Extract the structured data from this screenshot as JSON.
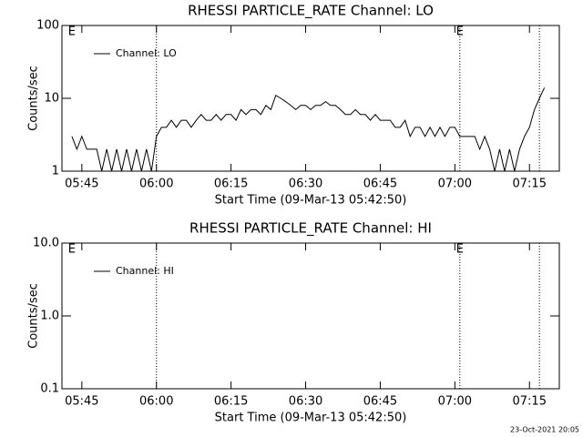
{
  "chart_data": [
    {
      "type": "line",
      "title": "RHESSI PARTICLE_RATE Channel: LO",
      "xlabel": "Start Time (09-Mar-13 05:42:50)",
      "ylabel": "Counts/sec",
      "log_y": true,
      "ylim": [
        1,
        100
      ],
      "yticks": [
        1,
        10,
        100
      ],
      "xlim": [
        "05:41",
        "07:21"
      ],
      "xticks": [
        "05:45",
        "06:00",
        "06:15",
        "06:30",
        "06:45",
        "07:00",
        "07:15"
      ],
      "vlines": [
        "06:00",
        "07:01",
        "07:17"
      ],
      "annotations": [
        {
          "x": "05:43",
          "label": "E"
        },
        {
          "x": "07:01",
          "label": "E"
        }
      ],
      "legend": "upper left",
      "x": [
        "05:43",
        "05:44",
        "05:45",
        "05:46",
        "05:47",
        "05:48",
        "05:49",
        "05:50",
        "05:51",
        "05:52",
        "05:53",
        "05:54",
        "05:55",
        "05:56",
        "05:57",
        "05:58",
        "05:59",
        "06:00",
        "06:01",
        "06:02",
        "06:03",
        "06:04",
        "06:05",
        "06:06",
        "06:07",
        "06:08",
        "06:09",
        "06:10",
        "06:11",
        "06:12",
        "06:13",
        "06:14",
        "06:15",
        "06:16",
        "06:17",
        "06:18",
        "06:19",
        "06:20",
        "06:21",
        "06:22",
        "06:23",
        "06:24",
        "06:25",
        "06:26",
        "06:27",
        "06:28",
        "06:29",
        "06:30",
        "06:31",
        "06:32",
        "06:33",
        "06:34",
        "06:35",
        "06:36",
        "06:37",
        "06:38",
        "06:39",
        "06:40",
        "06:41",
        "06:42",
        "06:43",
        "06:44",
        "06:45",
        "06:46",
        "06:47",
        "06:48",
        "06:49",
        "06:50",
        "06:51",
        "06:52",
        "06:53",
        "06:54",
        "06:55",
        "06:56",
        "06:57",
        "06:58",
        "06:59",
        "07:00",
        "07:01",
        "07:02",
        "07:03",
        "07:04",
        "07:05",
        "07:06",
        "07:07",
        "07:08",
        "07:09",
        "07:10",
        "07:11",
        "07:12",
        "07:13",
        "07:14",
        "07:15",
        "07:16",
        "07:17",
        "07:18"
      ],
      "series": [
        {
          "name": "Channel: LO",
          "color": "#000000",
          "values": [
            3,
            2,
            3,
            2,
            2,
            2,
            1,
            2,
            1,
            2,
            1,
            2,
            1,
            2,
            1,
            2,
            1,
            3,
            4,
            4,
            5,
            4,
            5,
            5,
            4,
            5,
            6,
            5,
            5,
            6,
            5,
            6,
            6,
            5,
            7,
            6,
            7,
            7,
            6,
            8,
            7,
            11,
            10,
            9,
            8,
            7,
            8,
            8,
            7,
            8,
            8,
            9,
            8,
            8,
            7,
            6,
            6,
            7,
            6,
            6,
            5,
            6,
            5,
            5,
            5,
            4,
            4,
            5,
            3,
            4,
            4,
            3,
            4,
            3,
            4,
            3,
            4,
            4,
            3,
            3,
            3,
            3,
            2,
            3,
            2,
            1,
            2,
            1,
            2,
            1,
            2,
            3,
            4,
            7,
            10,
            14
          ]
        }
      ]
    },
    {
      "type": "line",
      "title": "RHESSI PARTICLE_RATE Channel: HI",
      "xlabel": "Start Time (09-Mar-13 05:42:50)",
      "ylabel": "Counts/sec",
      "log_y": true,
      "ylim": [
        0.1,
        10
      ],
      "yticks": [
        0.1,
        {
          "value": 1,
          "label": "1.0"
        },
        {
          "value": 10,
          "label": "10.0"
        }
      ],
      "xlim": [
        "05:41",
        "07:21"
      ],
      "xticks": [
        "05:45",
        "06:00",
        "06:15",
        "06:30",
        "06:45",
        "07:00",
        "07:15"
      ],
      "vlines": [
        "06:00",
        "07:01",
        "07:17"
      ],
      "annotations": [
        {
          "x": "05:43",
          "label": "E"
        },
        {
          "x": "07:01",
          "label": "E"
        }
      ],
      "legend": "upper left",
      "x": [],
      "series": [
        {
          "name": "Channel: HI",
          "color": "#000000",
          "values": []
        }
      ]
    }
  ],
  "footer": "23-Oct-2021 20:05"
}
